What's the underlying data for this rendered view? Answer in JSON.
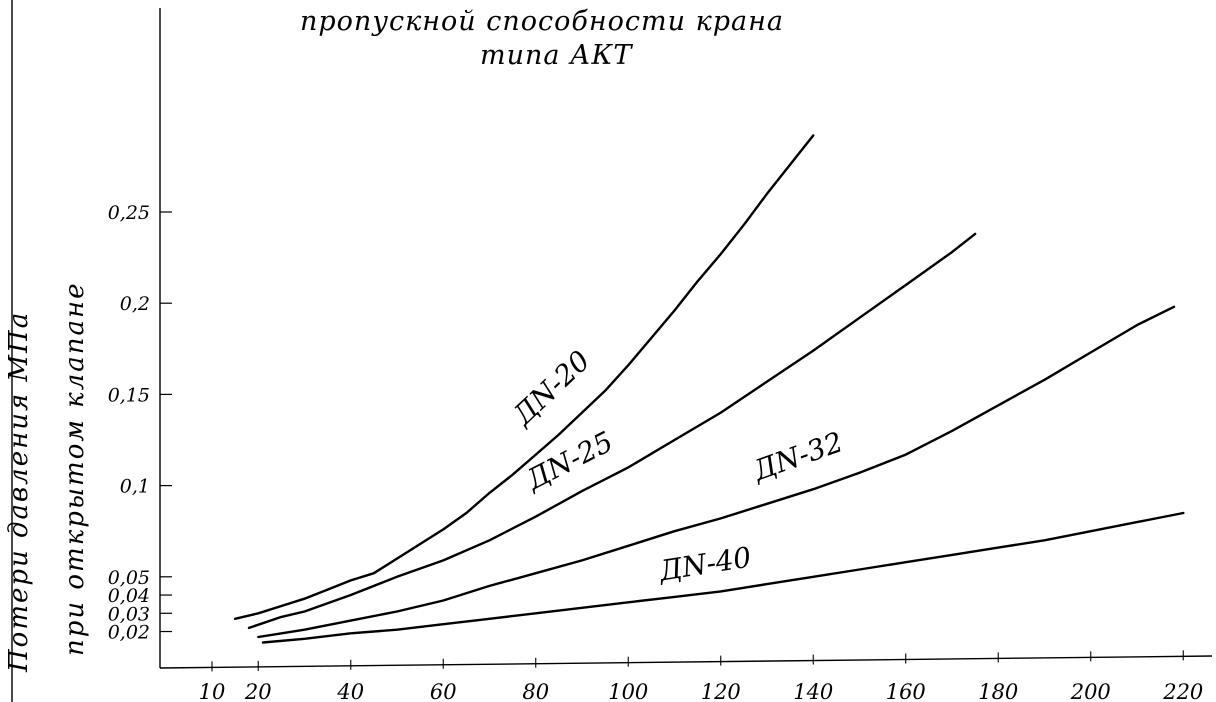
{
  "chart_data": {
    "type": "line",
    "title_lines": [
      "пропускной   способности   крана",
      "типа  АКТ"
    ],
    "ylabel_lines": [
      "Потери  давления   МПа",
      "при  открытом   клапане"
    ],
    "xlabel": "",
    "x_ticks": [
      10,
      20,
      40,
      60,
      80,
      100,
      120,
      140,
      160,
      180,
      200,
      220
    ],
    "x_tick_labels": [
      "10",
      "20",
      "40",
      "60",
      "80",
      "100",
      "120",
      "140",
      "160",
      "180",
      "200",
      "220"
    ],
    "y_ticks": [
      0.02,
      0.03,
      0.04,
      0.05,
      0.1,
      0.15,
      0.2,
      0.25
    ],
    "y_tick_labels": [
      "0,02",
      "0,03",
      "0,04",
      "0,05",
      "0,1",
      "0,15",
      "0,2",
      "0,25"
    ],
    "grid": false,
    "legend": "none",
    "series": [
      {
        "name": "ДN-20",
        "x": [
          15,
          20,
          25,
          30,
          35,
          40,
          45,
          50,
          55,
          60,
          65,
          70,
          75,
          80,
          85,
          90,
          95,
          100,
          105,
          110,
          115,
          120,
          125,
          130,
          135,
          140
        ],
        "y": [
          0.027,
          0.03,
          0.034,
          0.038,
          0.043,
          0.048,
          0.052,
          0.06,
          0.068,
          0.076,
          0.085,
          0.096,
          0.106,
          0.117,
          0.128,
          0.14,
          0.152,
          0.166,
          0.181,
          0.196,
          0.212,
          0.227,
          0.243,
          0.26,
          0.276,
          0.292
        ]
      },
      {
        "name": "ДN-25",
        "x": [
          18,
          25,
          30,
          40,
          50,
          60,
          70,
          80,
          90,
          100,
          110,
          120,
          130,
          140,
          150,
          160,
          170,
          175
        ],
        "y": [
          0.022,
          0.028,
          0.031,
          0.04,
          0.05,
          0.059,
          0.07,
          0.083,
          0.097,
          0.11,
          0.125,
          0.14,
          0.157,
          0.174,
          0.192,
          0.21,
          0.228,
          0.238
        ]
      },
      {
        "name": "ДN-32",
        "x": [
          20,
          30,
          40,
          50,
          60,
          70,
          80,
          90,
          100,
          110,
          120,
          130,
          140,
          150,
          160,
          170,
          180,
          190,
          200,
          210,
          218
        ],
        "y": [
          0.017,
          0.021,
          0.026,
          0.031,
          0.037,
          0.045,
          0.052,
          0.059,
          0.067,
          0.075,
          0.082,
          0.09,
          0.098,
          0.107,
          0.117,
          0.13,
          0.144,
          0.158,
          0.173,
          0.188,
          0.198
        ]
      },
      {
        "name": "ДN-40",
        "x": [
          21,
          30,
          40,
          50,
          60,
          70,
          80,
          90,
          100,
          110,
          120,
          130,
          140,
          150,
          160,
          170,
          180,
          190,
          200,
          210,
          220
        ],
        "y": [
          0.014,
          0.016,
          0.019,
          0.021,
          0.024,
          0.027,
          0.03,
          0.033,
          0.036,
          0.039,
          0.042,
          0.046,
          0.05,
          0.054,
          0.058,
          0.062,
          0.066,
          0.07,
          0.075,
          0.08,
          0.085
        ]
      }
    ],
    "line_color": "#000000"
  }
}
